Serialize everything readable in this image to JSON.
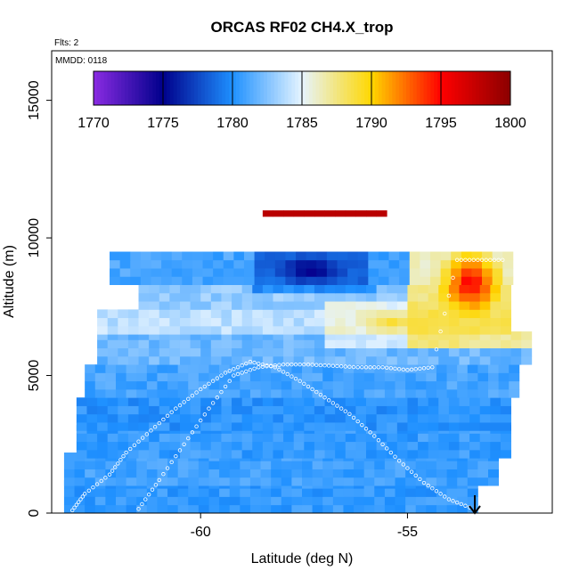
{
  "chart_data": {
    "type": "heatmap",
    "title": "ORCAS RF02 CH4.X_trop",
    "annotations": {
      "flights": "Flts: 2",
      "date": "MMDD: 0118"
    },
    "xlabel": "Latitude (deg N)",
    "ylabel": "Altitude (m)",
    "xlim": [
      -63.6,
      -51.5
    ],
    "ylim": [
      0,
      16800
    ],
    "xticks": [
      -60,
      -55
    ],
    "yticks": [
      0,
      5000,
      10000,
      15000
    ],
    "colorbar": {
      "range": [
        1770,
        1800
      ],
      "ticks": [
        1770,
        1775,
        1780,
        1785,
        1790,
        1795,
        1800
      ],
      "colors": [
        "#8a2be2",
        "#00008b",
        "#1e90ff",
        "#e6f4ff",
        "#ffd700",
        "#ff0000",
        "#8b0000"
      ]
    },
    "grid": false,
    "legend": "none",
    "cell_size": {
      "dlat": 0.25,
      "dalt": 300
    },
    "layers": [
      {
        "alt": [
          0,
          1000
        ],
        "lat": [
          -63.3,
          -53.4
        ],
        "value": 1780.5
      },
      {
        "alt": [
          1000,
          2000
        ],
        "lat": [
          -63.3,
          -52.8
        ],
        "value": 1780.8
      },
      {
        "alt": [
          2000,
          3000
        ],
        "lat": [
          -63.0,
          -52.7
        ],
        "value": 1780.6
      },
      {
        "alt": [
          3000,
          4200
        ],
        "lat": [
          -63.0,
          -52.5
        ],
        "value": 1780.2
      },
      {
        "alt": [
          4200,
          5400
        ],
        "lat": [
          -62.8,
          -52.3
        ],
        "value": 1781.0
      },
      {
        "alt": [
          5400,
          6500
        ],
        "lat": [
          -62.5,
          -52.2
        ],
        "value": 1782.0
      },
      {
        "alt": [
          6500,
          7400
        ],
        "lat": [
          -62.5,
          -52.5
        ],
        "value": 1784.0
      },
      {
        "alt": [
          7400,
          8300
        ],
        "lat": [
          -61.5,
          -52.5
        ],
        "value": 1783.0
      },
      {
        "alt": [
          8300,
          9300
        ],
        "lat": [
          -62.2,
          -52.5
        ],
        "value": 1781.0
      }
    ],
    "features": [
      {
        "name": "stratospheric high plume",
        "lat": [
          -55.0,
          -52.2
        ],
        "alt": [
          6000,
          10500
        ],
        "value": 1796
      },
      {
        "name": "upper low-methane band",
        "lat": [
          -58.9,
          -56.0
        ],
        "alt": [
          7800,
          9600
        ],
        "value": 1774
      },
      {
        "name": "mid-level warm intrusion",
        "lat": [
          -57.0,
          -54.0
        ],
        "alt": [
          6000,
          7600
        ],
        "value": 1789
      },
      {
        "name": "high-altitude streak",
        "lat": [
          -58.5,
          -55.5
        ],
        "alt": [
          10800,
          11000
        ],
        "value": 1798
      }
    ],
    "sample_tracks": [
      {
        "lat": [
          -63.1,
          -62.8,
          -62.2,
          -61.8,
          -61.2,
          -60.6,
          -60.0,
          -59.4,
          -58.8,
          -58.2,
          -57.6,
          -57.0,
          -56.4,
          -55.8,
          -55.2,
          -54.6,
          -54.0,
          -53.4
        ],
        "alt": [
          100,
          700,
          1400,
          2200,
          3000,
          3800,
          4500,
          5100,
          5500,
          5300,
          4800,
          4200,
          3600,
          2800,
          1900,
          1100,
          500,
          150
        ]
      },
      {
        "lat": [
          -61.5,
          -61.0,
          -60.4,
          -59.8,
          -59.2,
          -58.6,
          -58.0,
          -57.4,
          -56.8,
          -56.2,
          -55.6,
          -55.0,
          -54.4,
          -53.8,
          -53.2,
          -52.6
        ],
        "alt": [
          150,
          1200,
          2500,
          3800,
          5000,
          5300,
          5400,
          5400,
          5350,
          5300,
          5300,
          5200,
          5300,
          9200,
          9200,
          9200
        ]
      }
    ]
  }
}
